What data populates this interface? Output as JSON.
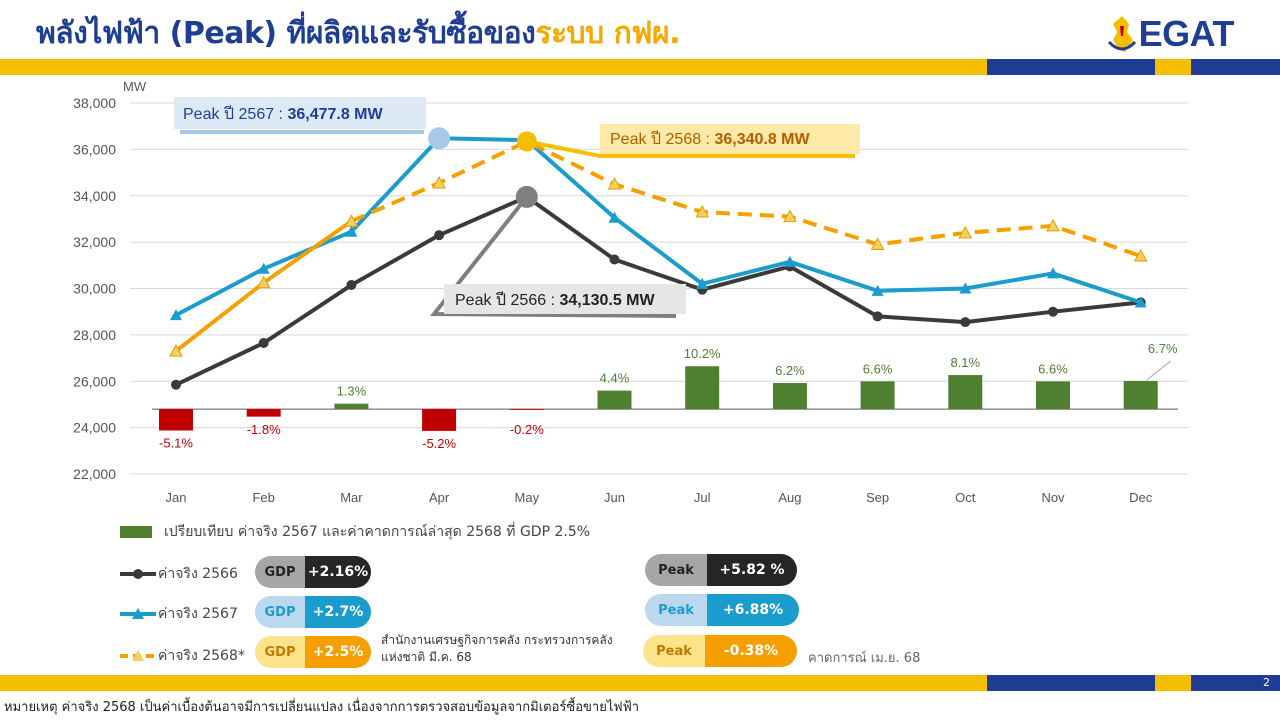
{
  "header": {
    "title_main": "พลังไฟฟ้า (Peak) ที่ผลิตและรับซื้อของ",
    "title_accent": "ระบบ กฟผ.",
    "logo_text": "EGAT"
  },
  "colors": {
    "navy": "#1f3e93",
    "gold": "#f5be00",
    "series_2566": "#3a3a3a",
    "series_2567": "#1a9ccc",
    "series_2568": "#f5a000",
    "bar_positive": "#4f7f31",
    "bar_negative": "#c00000"
  },
  "chart_data": {
    "type": "line",
    "ylabel": "MW",
    "ylim": [
      22000,
      38000
    ],
    "yticks": [
      "22,000",
      "24,000",
      "26,000",
      "28,000",
      "30,000",
      "32,000",
      "34,000",
      "36,000",
      "38,000"
    ],
    "grid": true,
    "categories": [
      "Jan",
      "Feb",
      "Mar",
      "Apr",
      "May",
      "Jun",
      "Jul",
      "Aug",
      "Sep",
      "Oct",
      "Nov",
      "Dec"
    ],
    "series": [
      {
        "name": "ค่าจริง 2566",
        "style": "solid-circle",
        "values": [
          25850,
          27650,
          30150,
          32300,
          33950,
          31250,
          29950,
          30950,
          28800,
          28550,
          29000,
          29400
        ]
      },
      {
        "name": "ค่าจริง 2567",
        "style": "solid-triangle",
        "values": [
          28850,
          30850,
          32450,
          36478,
          36400,
          33050,
          30200,
          31150,
          29900,
          30000,
          30650,
          29400
        ]
      },
      {
        "name": "ค่าจริง 2568*",
        "style": "solid-then-dashed",
        "values": [
          27300,
          30250,
          32900,
          34550,
          36341,
          34500,
          33300,
          33100,
          31900,
          32400,
          32700,
          31400
        ]
      }
    ],
    "growth_bars": {
      "name": "เปรียบเทียบ ค่าจริง 2567 และค่าคาดการณ์ล่าสุด 2568 ที่ GDP 2.5%",
      "baseline": 24800,
      "values": [
        -5.1,
        -1.8,
        1.3,
        -5.2,
        -0.2,
        4.4,
        10.2,
        6.2,
        6.6,
        8.1,
        6.6,
        6.7
      ],
      "labels": [
        "-5.1%",
        "-1.8%",
        "1.3%",
        "-5.2%",
        "-0.2%",
        "4.4%",
        "10.2%",
        "6.2%",
        "6.6%",
        "8.1%",
        "6.6%",
        "6.7%"
      ]
    },
    "callouts": {
      "peak_2567": {
        "prefix": "Peak ปี 2567 : ",
        "value": "36,477.8 MW"
      },
      "peak_2568": {
        "prefix": "Peak ปี 2568 : ",
        "value": "36,340.8 MW"
      },
      "peak_2566": {
        "prefix": "Peak ปี 2566 : ",
        "value": "34,130.5 MW"
      }
    }
  },
  "legend": {
    "bar_label": "เปรียบเทียบ ค่าจริง 2567 และค่าคาดการณ์ล่าสุด 2568 ที่ GDP 2.5%",
    "s2566": "ค่าจริง 2566",
    "s2567": "ค่าจริง 2567",
    "s2568": "ค่าจริง 2568*"
  },
  "pills": {
    "gdp_2566": {
      "label": "GDP",
      "value": "+2.16%"
    },
    "gdp_2567": {
      "label": "GDP",
      "value": "+2.7%"
    },
    "gdp_2568": {
      "label": "GDP",
      "value": "+2.5%"
    },
    "peak_2566": {
      "label": "Peak",
      "value": "+5.82 %"
    },
    "peak_2567": {
      "label": "Peak",
      "value": "+6.88%"
    },
    "peak_2568": {
      "label": "Peak",
      "value": "-0.38%"
    }
  },
  "source_text": "สำนักงานเศรษฐกิจการคลัง กระทรวงการคลัง แห่งชาติ  มี.ค. 68",
  "forecast_text": "คาดการณ์ เม.ย. 68",
  "footer_note": "หมายเหตุ ค่าจริง 2568 เป็นค่าเบื้องต้นอาจมีการเปลี่ยนแปลง เนื่องจากการตรวจสอบข้อมูลจากมิเตอร์ซื้อขายไฟฟ้า",
  "page_number": "2"
}
